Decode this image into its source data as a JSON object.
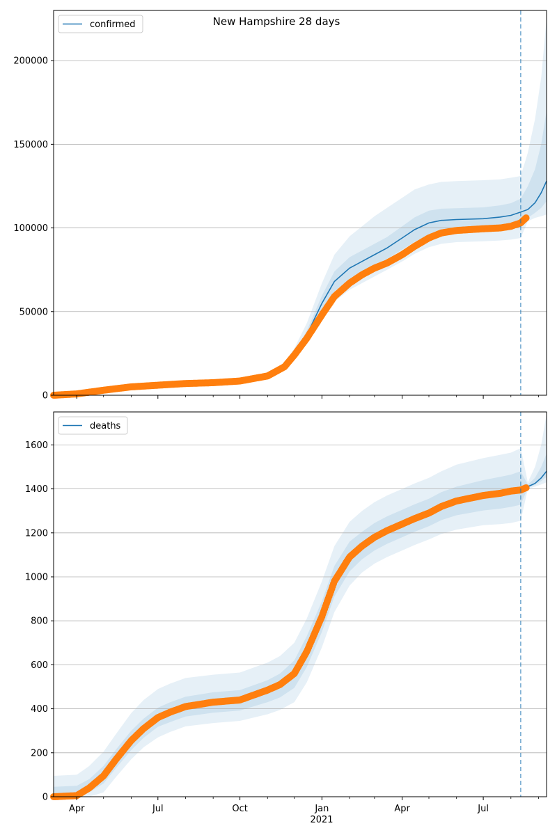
{
  "title": "New Hampshire 28 days",
  "x_ticks": [
    "Apr",
    "Jul",
    "Oct",
    "Jan",
    "Apr",
    "Jul"
  ],
  "x_year_label": "2021",
  "colors": {
    "model": "#1f77b4",
    "observed": "#ff7f0e",
    "band": "#1f77b4",
    "grid": "#b0b0b0"
  },
  "chart_data": [
    {
      "type": "line",
      "legend": "confirmed",
      "legend_position": "top-left",
      "grid": "horizontal",
      "x_range": [
        "2020-03-06",
        "2021-09-10"
      ],
      "y_range": [
        0,
        230000
      ],
      "y_ticks": [
        0,
        50000,
        100000,
        150000,
        200000
      ],
      "forecast_start": "2021-08-12",
      "model": {
        "x": [
          "2020-03-06",
          "2020-04-01",
          "2020-05-01",
          "2020-06-01",
          "2020-07-01",
          "2020-08-01",
          "2020-09-01",
          "2020-10-01",
          "2020-11-01",
          "2020-11-20",
          "2020-12-01",
          "2020-12-15",
          "2021-01-01",
          "2021-01-15",
          "2021-02-01",
          "2021-02-15",
          "2021-03-01",
          "2021-03-15",
          "2021-04-01",
          "2021-04-15",
          "2021-05-01",
          "2021-05-15",
          "2021-06-01",
          "2021-07-01",
          "2021-07-20",
          "2021-08-01",
          "2021-08-12",
          "2021-08-20",
          "2021-08-28",
          "2021-09-04",
          "2021-09-10"
        ],
        "y": [
          0,
          800,
          3000,
          5000,
          6000,
          7000,
          8000,
          9000,
          12000,
          17000,
          24000,
          36000,
          55000,
          68000,
          76000,
          80000,
          84000,
          88000,
          94000,
          99000,
          103000,
          104500,
          105000,
          105500,
          106500,
          107500,
          109500,
          111000,
          115000,
          121000,
          128000
        ]
      },
      "observed": {
        "x": [
          "2020-03-06",
          "2020-04-01",
          "2020-05-01",
          "2020-06-01",
          "2020-07-01",
          "2020-08-01",
          "2020-09-01",
          "2020-10-01",
          "2020-11-01",
          "2020-11-20",
          "2020-12-01",
          "2020-12-15",
          "2021-01-01",
          "2021-01-15",
          "2021-02-01",
          "2021-02-15",
          "2021-03-01",
          "2021-03-15",
          "2021-04-01",
          "2021-04-15",
          "2021-05-01",
          "2021-05-15",
          "2021-06-01",
          "2021-07-01",
          "2021-07-20",
          "2021-08-01",
          "2021-08-12",
          "2021-08-18"
        ],
        "y": [
          0,
          800,
          3000,
          5000,
          6000,
          7000,
          7500,
          8500,
          11500,
          17000,
          24000,
          34000,
          48000,
          59000,
          67000,
          72000,
          76000,
          79000,
          84000,
          89000,
          94000,
          97000,
          98500,
          99500,
          100000,
          101000,
          103000,
          106000
        ]
      },
      "bands": [
        {
          "lower": [
            0,
            700,
            2800,
            4700,
            5600,
            6500,
            7300,
            8100,
            10800,
            15000,
            21000,
            31000,
            46000,
            56000,
            63000,
            67000,
            71000,
            75000,
            80000,
            84500,
            88500,
            90500,
            91500,
            92000,
            92500,
            93000,
            94000,
            104000,
            106000,
            107000,
            108000
          ],
          "upper": [
            0,
            900,
            3200,
            5300,
            6500,
            7600,
            8800,
            10200,
            13500,
            19500,
            28000,
            43000,
            67000,
            84000,
            95000,
            101000,
            107000,
            112000,
            118000,
            123000,
            126000,
            127500,
            128000,
            128500,
            129000,
            130000,
            131000,
            145000,
            165000,
            190000,
            225000
          ]
        },
        {
          "lower": [
            0,
            750,
            2900,
            4850,
            5800,
            6750,
            7650,
            8550,
            11400,
            16000,
            22500,
            33500,
            50500,
            62000,
            69500,
            73500,
            77500,
            81500,
            87000,
            91700,
            95700,
            97500,
            98200,
            98700,
            99500,
            100200,
            101500,
            106000,
            109000,
            112000,
            116000
          ],
          "upper": [
            0,
            850,
            3100,
            5150,
            6200,
            7250,
            8350,
            9450,
            12600,
            18000,
            25500,
            38500,
            59500,
            74000,
            82500,
            86500,
            90500,
            94500,
            101000,
            106300,
            110300,
            111500,
            111800,
            112300,
            113500,
            114800,
            117500,
            125000,
            135000,
            150000,
            170000
          ]
        }
      ]
    },
    {
      "type": "line",
      "legend": "deaths",
      "legend_position": "top-left",
      "grid": "horizontal",
      "x_range": [
        "2020-03-06",
        "2021-09-10"
      ],
      "y_range": [
        0,
        1750
      ],
      "y_ticks": [
        0,
        200,
        400,
        600,
        800,
        1000,
        1200,
        1400,
        1600
      ],
      "forecast_start": "2021-08-12",
      "model": {
        "x": [
          "2020-03-06",
          "2020-04-01",
          "2020-04-15",
          "2020-05-01",
          "2020-05-15",
          "2020-06-01",
          "2020-06-15",
          "2020-07-01",
          "2020-07-15",
          "2020-08-01",
          "2020-09-01",
          "2020-10-01",
          "2020-11-01",
          "2020-11-15",
          "2020-12-01",
          "2020-12-15",
          "2021-01-01",
          "2021-01-15",
          "2021-02-01",
          "2021-02-15",
          "2021-03-01",
          "2021-03-15",
          "2021-04-01",
          "2021-04-15",
          "2021-05-01",
          "2021-05-15",
          "2021-06-01",
          "2021-07-01",
          "2021-07-20",
          "2021-08-01",
          "2021-08-12",
          "2021-08-20",
          "2021-08-28",
          "2021-09-04",
          "2021-09-10"
        ],
        "y": [
          0,
          5,
          40,
          95,
          170,
          255,
          310,
          360,
          385,
          410,
          430,
          440,
          485,
          510,
          560,
          660,
          820,
          980,
          1090,
          1140,
          1180,
          1210,
          1240,
          1265,
          1290,
          1320,
          1345,
          1370,
          1380,
          1390,
          1400,
          1410,
          1425,
          1450,
          1480
        ]
      },
      "observed": {
        "x": [
          "2020-03-06",
          "2020-04-01",
          "2020-04-15",
          "2020-05-01",
          "2020-05-15",
          "2020-06-01",
          "2020-06-15",
          "2020-07-01",
          "2020-07-15",
          "2020-08-01",
          "2020-09-01",
          "2020-10-01",
          "2020-11-01",
          "2020-11-15",
          "2020-12-01",
          "2020-12-15",
          "2021-01-01",
          "2021-01-15",
          "2021-02-01",
          "2021-02-15",
          "2021-03-01",
          "2021-03-15",
          "2021-04-01",
          "2021-04-15",
          "2021-05-01",
          "2021-05-15",
          "2021-06-01",
          "2021-07-01",
          "2021-07-20",
          "2021-08-01",
          "2021-08-12",
          "2021-08-18"
        ],
        "y": [
          0,
          5,
          40,
          95,
          170,
          255,
          310,
          360,
          385,
          410,
          430,
          440,
          485,
          510,
          560,
          660,
          820,
          980,
          1090,
          1140,
          1180,
          1210,
          1240,
          1265,
          1290,
          1320,
          1345,
          1370,
          1380,
          1390,
          1395,
          1405
        ]
      },
      "bands": [
        {
          "lower": [
            0,
            0,
            0,
            20,
            90,
            170,
            225,
            270,
            295,
            320,
            335,
            345,
            375,
            395,
            430,
            520,
            680,
            840,
            960,
            1020,
            1060,
            1090,
            1120,
            1145,
            1170,
            1195,
            1215,
            1235,
            1240,
            1245,
            1255,
            1400,
            1410,
            1420,
            1430
          ],
          "upper": [
            95,
            100,
            140,
            205,
            285,
            380,
            440,
            490,
            515,
            540,
            555,
            565,
            610,
            640,
            700,
            810,
            980,
            1140,
            1250,
            1300,
            1340,
            1370,
            1400,
            1425,
            1450,
            1480,
            1510,
            1540,
            1555,
            1565,
            1585,
            1430,
            1500,
            1600,
            1740
          ]
        },
        {
          "lower": [
            0,
            2,
            20,
            60,
            130,
            212,
            268,
            318,
            340,
            365,
            382,
            392,
            430,
            452,
            495,
            590,
            750,
            910,
            1025,
            1080,
            1120,
            1150,
            1180,
            1205,
            1230,
            1258,
            1280,
            1302,
            1310,
            1318,
            1328,
            1405,
            1418,
            1435,
            1455
          ],
          "upper": [
            45,
            50,
            80,
            140,
            215,
            300,
            355,
            405,
            430,
            455,
            475,
            485,
            530,
            560,
            620,
            730,
            890,
            1050,
            1160,
            1205,
            1245,
            1275,
            1305,
            1330,
            1355,
            1385,
            1410,
            1440,
            1455,
            1465,
            1480,
            1420,
            1450,
            1500,
            1560
          ]
        }
      ]
    }
  ]
}
